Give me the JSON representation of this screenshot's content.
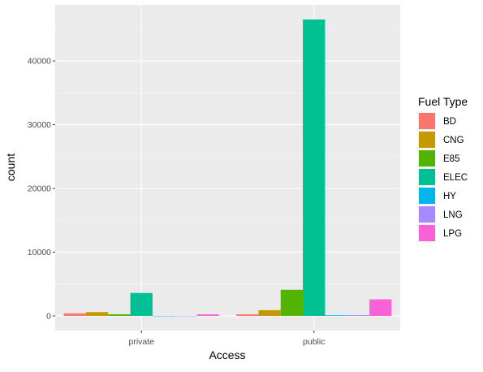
{
  "chart_data": {
    "type": "bar",
    "xlabel": "Access",
    "ylabel": "count",
    "categories": [
      "private",
      "public"
    ],
    "ylim": [
      -2300,
      48800
    ],
    "yticks": [
      0,
      10000,
      20000,
      30000,
      40000
    ],
    "grid": true,
    "legend": {
      "title": "Fuel Type",
      "position": "right"
    },
    "series": [
      {
        "name": "BD",
        "color": "#F8766D",
        "values": [
          400,
          250
        ]
      },
      {
        "name": "CNG",
        "color": "#C49A00",
        "values": [
          600,
          900
        ]
      },
      {
        "name": "E85",
        "color": "#53B400",
        "values": [
          250,
          4100
        ]
      },
      {
        "name": "ELEC",
        "color": "#00C094",
        "values": [
          3600,
          46500
        ]
      },
      {
        "name": "HY",
        "color": "#00B6EB",
        "values": [
          10,
          100
        ]
      },
      {
        "name": "LNG",
        "color": "#A58AFF",
        "values": [
          10,
          120
        ]
      },
      {
        "name": "LPG",
        "color": "#FB61D7",
        "values": [
          250,
          2600
        ]
      }
    ]
  }
}
